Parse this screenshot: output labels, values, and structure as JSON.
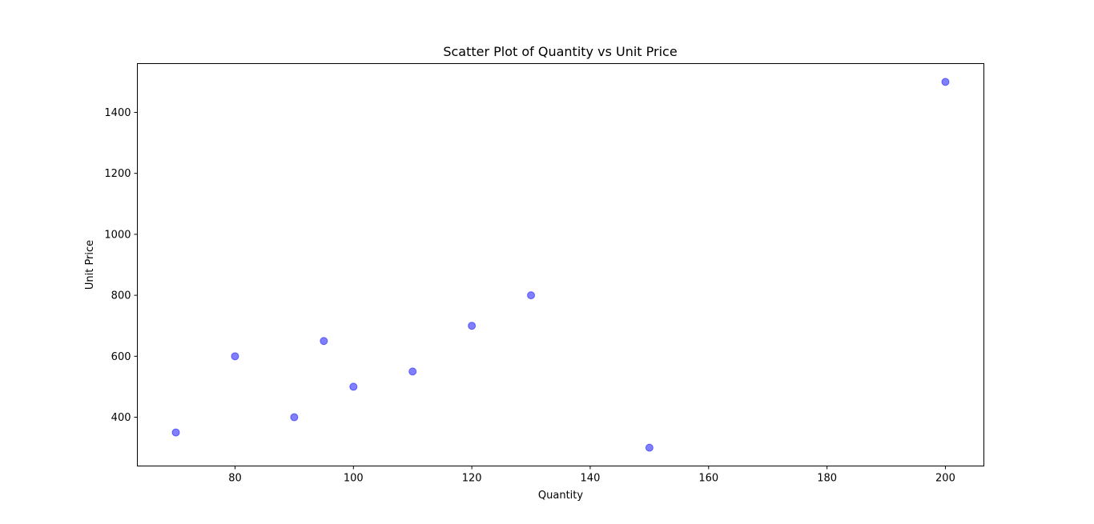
{
  "chart_data": {
    "type": "scatter",
    "title": "Scatter Plot of Quantity vs Unit Price",
    "xlabel": "Quantity",
    "ylabel": "Unit Price",
    "xlim": [
      63.5,
      206.5
    ],
    "ylim": [
      240,
      1560
    ],
    "xticks": [
      80,
      100,
      120,
      140,
      160,
      180,
      200
    ],
    "yticks": [
      400,
      600,
      800,
      1000,
      1200,
      1400
    ],
    "grid": false,
    "point_color": "#0000ff",
    "point_opacity": 0.5,
    "x": [
      70,
      80,
      90,
      95,
      100,
      110,
      120,
      130,
      150,
      200
    ],
    "y": [
      350,
      600,
      400,
      650,
      500,
      550,
      700,
      800,
      300,
      1500
    ]
  }
}
